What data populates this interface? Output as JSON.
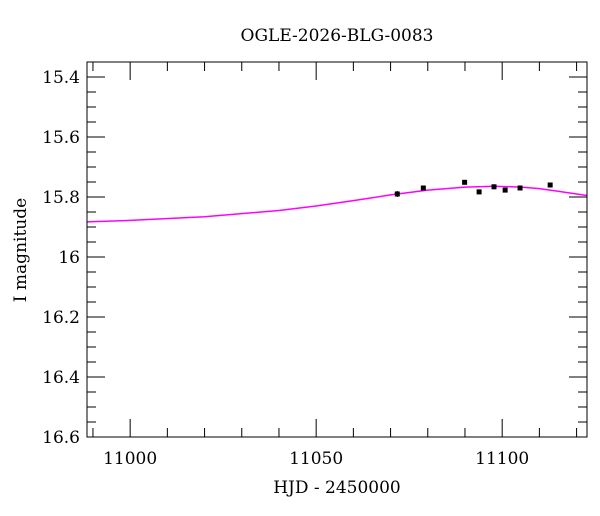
{
  "chart_data": {
    "type": "scatter",
    "title": "OGLE-2026-BLG-0083",
    "xlabel": "HJD - 2450000",
    "ylabel": "I magnitude",
    "xlim": [
      10988.4,
      11122.8
    ],
    "ylim": [
      16.6,
      15.35
    ],
    "y_inverted": true,
    "grid": false,
    "x_ticks": [
      11000,
      11050,
      11100
    ],
    "x_tick_labels": [
      "11000",
      "11050",
      "11100"
    ],
    "y_ticks": [
      15.4,
      15.6,
      15.8,
      16,
      16.2,
      16.4,
      16.6
    ],
    "y_tick_labels": [
      "15.4",
      "15.6",
      "15.8",
      "16",
      "16.2",
      "16.4",
      "16.6"
    ],
    "series": [
      {
        "kind": "points_with_errorbars",
        "color": "#000000",
        "x": [
          11071.8,
          11078.8,
          11089.9,
          11093.8,
          11097.8,
          11100.8,
          11104.8,
          11112.9
        ],
        "y": [
          15.79,
          15.77,
          15.751,
          15.783,
          15.766,
          15.777,
          15.77,
          15.76
        ],
        "err": [
          0.01,
          0.008,
          0.007,
          0.008,
          0.008,
          0.008,
          0.008,
          0.008
        ]
      },
      {
        "kind": "model_line",
        "color": "#ff00ff",
        "x": [
          10988.4,
          11000,
          11020,
          11040,
          11050,
          11060,
          11070,
          11080,
          11090,
          11098,
          11105,
          11110,
          11115,
          11122.8
        ],
        "y": [
          15.883,
          15.878,
          15.866,
          15.845,
          15.83,
          15.812,
          15.793,
          15.777,
          15.767,
          15.764,
          15.767,
          15.772,
          15.781,
          15.795
        ]
      }
    ]
  }
}
